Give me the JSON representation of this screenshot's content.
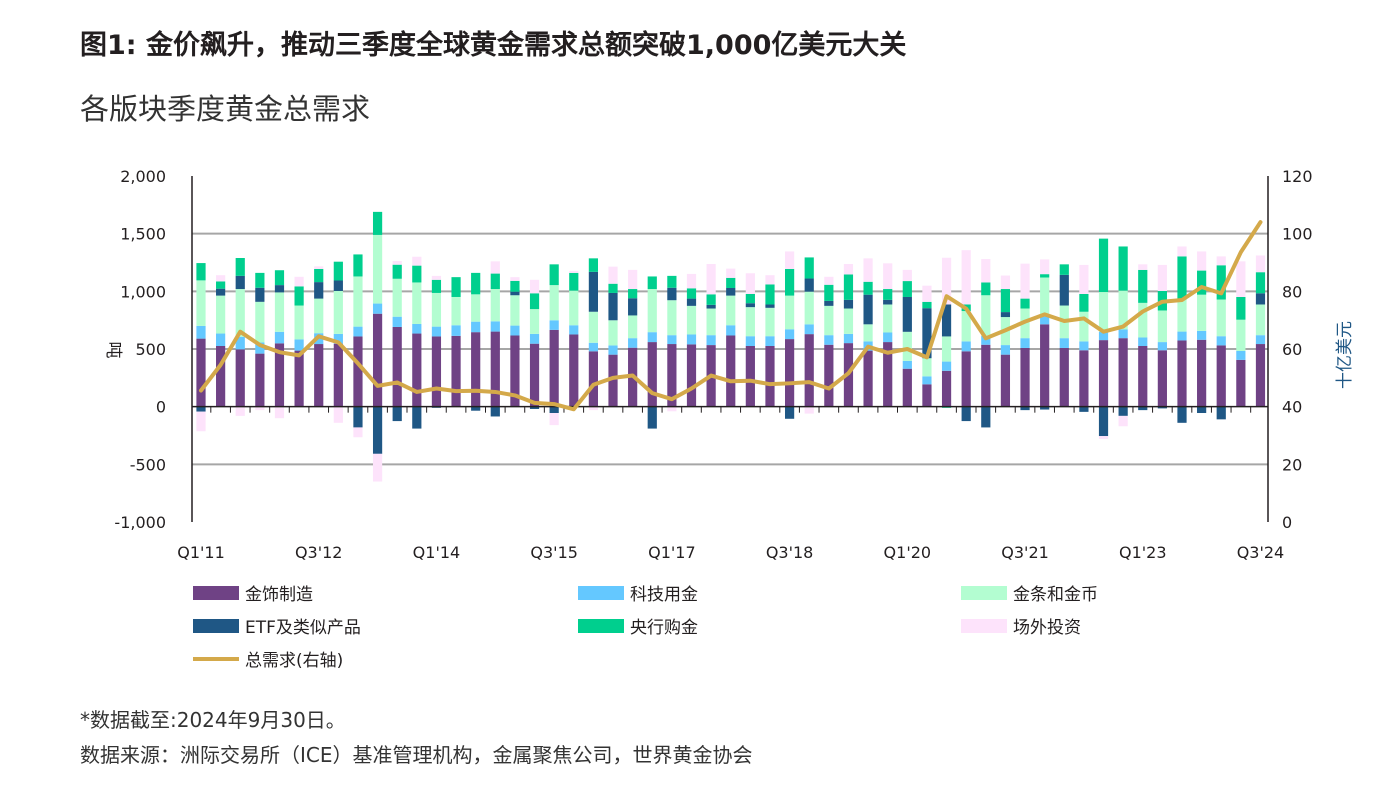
{
  "header": {
    "title": "图1: 金价飙升，推动三季度全球黄金需求总额突破1,000亿美元大关",
    "subtitle": "各版块季度黄金总需求"
  },
  "chart_data": {
    "type": "bar",
    "stacked": true,
    "title": "各版块季度黄金总需求",
    "ylabel": "吨",
    "y2label": "十亿美元",
    "ylim": [
      -1000,
      2000
    ],
    "y2lim": [
      0,
      120
    ],
    "yticks": [
      "2,000",
      "1,500",
      "1,000",
      "500",
      "0",
      "-500",
      "-1,000"
    ],
    "ytick_values": [
      2000,
      1500,
      1000,
      500,
      0,
      -500,
      -1000
    ],
    "y2ticks": [
      "120",
      "100",
      "80",
      "60",
      "40",
      "20",
      "0"
    ],
    "y2tick_values": [
      120,
      100,
      80,
      60,
      40,
      20,
      0
    ],
    "grid": true,
    "xtick_labels": [
      "Q1'11",
      "Q3'12",
      "Q1'14",
      "Q3'15",
      "Q1'17",
      "Q3'18",
      "Q1'20",
      "Q3'21",
      "Q1'23",
      "Q3'24"
    ],
    "xtick_every": 6,
    "categories": [
      "Q1'11",
      "Q2'11",
      "Q3'11",
      "Q4'11",
      "Q1'12",
      "Q2'12",
      "Q3'12",
      "Q4'12",
      "Q1'13",
      "Q2'13",
      "Q3'13",
      "Q4'13",
      "Q1'14",
      "Q2'14",
      "Q3'14",
      "Q4'14",
      "Q1'15",
      "Q2'15",
      "Q3'15",
      "Q4'15",
      "Q1'16",
      "Q2'16",
      "Q3'16",
      "Q4'16",
      "Q1'17",
      "Q2'17",
      "Q3'17",
      "Q4'17",
      "Q1'18",
      "Q2'18",
      "Q3'18",
      "Q4'18",
      "Q1'19",
      "Q2'19",
      "Q3'19",
      "Q4'19",
      "Q1'20",
      "Q2'20",
      "Q3'20",
      "Q4'20",
      "Q1'21",
      "Q2'21",
      "Q3'21",
      "Q4'21",
      "Q1'22",
      "Q2'22",
      "Q3'22",
      "Q4'22",
      "Q1'23",
      "Q2'23",
      "Q3'23",
      "Q4'23",
      "Q1'24",
      "Q2'24",
      "Q3'24"
    ],
    "series": [
      {
        "name": "金饰制造",
        "color": "#6f4285",
        "values": [
          590,
          526,
          497,
          460,
          549,
          486,
          543,
          546,
          609,
          806,
          691,
          634,
          609,
          614,
          646,
          651,
          617,
          546,
          666,
          626,
          480,
          451,
          511,
          560,
          543,
          540,
          534,
          617,
          526,
          526,
          586,
          629,
          537,
          551,
          486,
          560,
          329,
          194,
          311,
          480,
          537,
          451,
          509,
          714,
          509,
          489,
          577,
          594,
          526,
          489,
          574,
          580,
          531,
          406,
          543
        ]
      },
      {
        "name": "科技用金",
        "color": "#64c8ff",
        "values": [
          110,
          108,
          109,
          97,
          100,
          97,
          94,
          85,
          85,
          88,
          89,
          83,
          85,
          92,
          91,
          89,
          86,
          85,
          83,
          80,
          74,
          80,
          83,
          86,
          77,
          86,
          86,
          89,
          85,
          85,
          85,
          85,
          83,
          80,
          80,
          83,
          68,
          69,
          80,
          86,
          77,
          83,
          85,
          75,
          85,
          77,
          72,
          75,
          74,
          71,
          77,
          77,
          80,
          77,
          77
        ]
      },
      {
        "name": "金条和金币",
        "color": "#b3fdd1",
        "values": [
          395,
          329,
          414,
          352,
          342,
          294,
          300,
          372,
          435,
          595,
          329,
          360,
          292,
          245,
          237,
          280,
          263,
          215,
          305,
          300,
          269,
          218,
          197,
          374,
          303,
          248,
          231,
          257,
          252,
          246,
          292,
          283,
          254,
          220,
          148,
          243,
          252,
          157,
          218,
          263,
          352,
          243,
          257,
          331,
          283,
          257,
          345,
          337,
          300,
          274,
          278,
          314,
          318,
          271,
          266
        ]
      },
      {
        "name": "ETF及类似产品",
        "color": "#1f5785",
        "values": [
          -43,
          60,
          114,
          122,
          63,
          0,
          143,
          91,
          -180,
          -409,
          -125,
          -190,
          -10,
          0,
          -35,
          -85,
          31,
          -20,
          -55,
          0,
          346,
          237,
          149,
          -190,
          108,
          63,
          32,
          66,
          34,
          29,
          -105,
          114,
          43,
          75,
          257,
          40,
          302,
          434,
          277,
          -125,
          -180,
          43,
          -30,
          -25,
          266,
          -45,
          -255,
          -80,
          -30,
          -15,
          -140,
          -55,
          -110,
          0,
          97
        ]
      },
      {
        "name": "央行购金",
        "color": "#00cf8e",
        "values": [
          150,
          63,
          155,
          129,
          129,
          166,
          114,
          163,
          191,
          200,
          122,
          146,
          114,
          172,
          186,
          134,
          94,
          137,
          180,
          154,
          117,
          80,
          80,
          109,
          103,
          89,
          91,
          88,
          80,
          174,
          231,
          183,
          140,
          220,
          112,
          94,
          138,
          55,
          -10,
          57,
          111,
          200,
          86,
          29,
          91,
          154,
          463,
          383,
          286,
          169,
          374,
          209,
          297,
          197,
          183
        ]
      },
      {
        "name": "场外投资",
        "color": "#fde3fb",
        "values": [
          -170,
          54,
          -80,
          -30,
          -100,
          83,
          23,
          -140,
          -85,
          -240,
          32,
          77,
          34,
          0,
          0,
          106,
          32,
          117,
          -105,
          17,
          -30,
          148,
          166,
          0,
          -40,
          125,
          263,
          80,
          180,
          80,
          152,
          -60,
          69,
          91,
          203,
          223,
          97,
          140,
          405,
          471,
          203,
          117,
          303,
          128,
          0,
          252,
          -25,
          -90,
          48,
          226,
          86,
          166,
          77,
          309,
          145
        ]
      }
    ],
    "line": {
      "name": "总需求(右轴)",
      "color": "#d4a94a",
      "axis": "right",
      "values": [
        45.6,
        54.5,
        66,
        61.4,
        58.9,
        57.8,
        64.4,
        62.3,
        55,
        47.2,
        48.4,
        45.1,
        46.3,
        45.4,
        45.5,
        45.1,
        43.9,
        41.3,
        40.9,
        39.1,
        47.6,
        50,
        50.8,
        44.7,
        42.6,
        46.3,
        50.8,
        48.8,
        49,
        47.8,
        48.1,
        48.5,
        46.3,
        51.6,
        60.8,
        58.7,
        60,
        57.1,
        78.3,
        74,
        63.7,
        66.5,
        69.5,
        72,
        69.7,
        70.6,
        66,
        67.8,
        73,
        76.4,
        77,
        81.5,
        79.3,
        93.6,
        104
      ]
    }
  },
  "legend": {
    "items": [
      "金饰制造",
      "科技用金",
      "金条和金币",
      "ETF及类似产品",
      "央行购金",
      "场外投资",
      "总需求(右轴)"
    ]
  },
  "footnotes": {
    "date_note": "*数据截至:2024年9月30日。",
    "source": "数据来源：洲际交易所（ICE）基准管理机构，金属聚焦公司，世界黄金协会"
  }
}
